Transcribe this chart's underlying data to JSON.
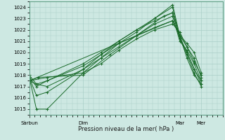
{
  "title": "",
  "xlabel": "Pression niveau de la mer( hPa )",
  "ylabel": "",
  "background_color": "#cde8e2",
  "grid_color": "#aacfc8",
  "line_color": "#1a6b2a",
  "marker_color": "#1a6b2a",
  "yticks": [
    1015,
    1016,
    1017,
    1018,
    1019,
    1020,
    1021,
    1022,
    1023,
    1024
  ],
  "ylim": [
    1014.5,
    1024.5
  ],
  "xlim": [
    0,
    108
  ],
  "xtick_positions": [
    0,
    30,
    84,
    96
  ],
  "xtick_labels": [
    "Sàrbun",
    "Dim",
    "Mar",
    "Mer"
  ],
  "lines": [
    {
      "x": [
        0,
        4,
        10,
        30,
        40,
        50,
        60,
        70,
        80,
        84,
        88,
        92,
        96
      ],
      "y": [
        1017.8,
        1015.0,
        1015.0,
        1018.2,
        1019.5,
        1020.8,
        1021.8,
        1023.0,
        1024.2,
        1021.5,
        1019.5,
        1018.0,
        1017.2
      ]
    },
    {
      "x": [
        0,
        4,
        10,
        30,
        40,
        50,
        60,
        70,
        80,
        84,
        88,
        92,
        96
      ],
      "y": [
        1017.8,
        1016.2,
        1016.5,
        1018.5,
        1019.8,
        1021.0,
        1022.0,
        1023.0,
        1024.0,
        1021.2,
        1020.0,
        1018.5,
        1017.5
      ]
    },
    {
      "x": [
        0,
        4,
        10,
        30,
        40,
        50,
        60,
        70,
        80,
        84,
        88,
        92,
        96
      ],
      "y": [
        1017.5,
        1017.2,
        1017.5,
        1019.0,
        1020.0,
        1021.0,
        1022.0,
        1022.8,
        1023.5,
        1021.5,
        1020.5,
        1019.5,
        1017.8
      ]
    },
    {
      "x": [
        0,
        4,
        10,
        30,
        40,
        50,
        60,
        70,
        80,
        84,
        88,
        92,
        96
      ],
      "y": [
        1017.8,
        1017.0,
        1017.5,
        1018.8,
        1019.8,
        1020.8,
        1021.5,
        1022.5,
        1023.2,
        1021.0,
        1020.2,
        1019.0,
        1017.5
      ]
    },
    {
      "x": [
        0,
        4,
        10,
        30,
        40,
        50,
        60,
        70,
        80,
        84,
        88,
        92,
        96
      ],
      "y": [
        1018.0,
        1017.2,
        1017.0,
        1018.5,
        1019.5,
        1020.5,
        1021.5,
        1022.2,
        1022.8,
        1021.5,
        1020.8,
        1020.0,
        1018.2
      ]
    },
    {
      "x": [
        0,
        10,
        30,
        40,
        50,
        60,
        70,
        80,
        84,
        88,
        92,
        96
      ],
      "y": [
        1017.5,
        1017.8,
        1018.2,
        1019.0,
        1020.2,
        1021.2,
        1022.0,
        1022.5,
        1021.8,
        1020.5,
        1019.2,
        1018.0
      ]
    },
    {
      "x": [
        0,
        5,
        30,
        45,
        60,
        75,
        80,
        84,
        88,
        92,
        96
      ],
      "y": [
        1017.5,
        1017.8,
        1018.0,
        1019.8,
        1021.5,
        1023.2,
        1023.5,
        1021.2,
        1019.8,
        1018.2,
        1017.0
      ]
    },
    {
      "x": [
        0,
        80,
        96
      ],
      "y": [
        1017.5,
        1022.8,
        1017.2
      ]
    }
  ]
}
